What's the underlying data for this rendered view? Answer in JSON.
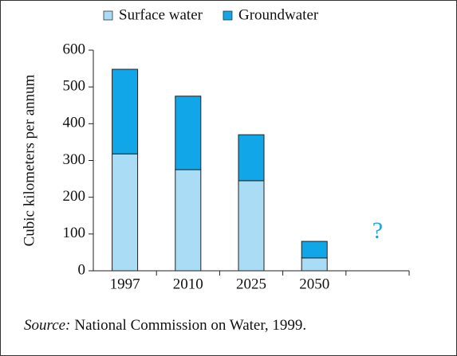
{
  "chart_data": {
    "type": "stacked_bar",
    "categories": [
      "1997",
      "2010",
      "2025",
      "2050",
      null
    ],
    "series": [
      {
        "name": "Surface water",
        "color": "#aadcf5",
        "values": [
          318,
          275,
          245,
          35,
          null
        ]
      },
      {
        "name": "Groundwater",
        "color": "#10a6e8",
        "values": [
          230,
          200,
          125,
          45,
          null
        ]
      }
    ],
    "y_label": "Cubic kilometers per annum",
    "ylim": [
      0,
      600
    ],
    "yticks": [
      0,
      100,
      200,
      300,
      400,
      500,
      600
    ],
    "annotation": {
      "text": "?",
      "color": "#1fa3de",
      "category": 4
    },
    "source_label": "Source:",
    "source_text": "National Commission on Water, 1999."
  }
}
